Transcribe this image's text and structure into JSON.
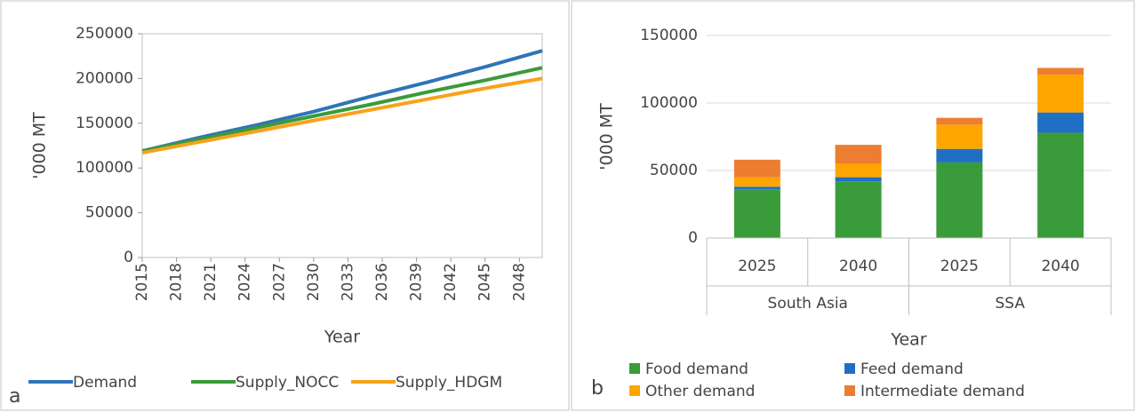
{
  "chart_data": [
    {
      "type": "line",
      "label": "a",
      "ylabel": "'000 MT",
      "xlabel": "Year",
      "x": [
        2015,
        2020,
        2025,
        2030,
        2035,
        2040,
        2045,
        2050
      ],
      "xlim": [
        2015,
        2050
      ],
      "xticks": [
        2015,
        2018,
        2021,
        2024,
        2027,
        2030,
        2033,
        2036,
        2039,
        2042,
        2045,
        2048
      ],
      "ylim": [
        0,
        250000
      ],
      "yticks": [
        0,
        50000,
        100000,
        150000,
        200000,
        250000
      ],
      "grid": false,
      "legend": "bottom",
      "series": [
        {
          "name": "Demand",
          "color": "#2e75b6",
          "values": [
            119000,
            134000,
            148000,
            163000,
            180000,
            196000,
            213000,
            231000
          ]
        },
        {
          "name": "Supply_NOCC",
          "color": "#3a9b3a",
          "values": [
            119000,
            132000,
            145000,
            158000,
            171000,
            185000,
            198000,
            212000
          ]
        },
        {
          "name": "Supply_HDGM",
          "color": "#f9a11b",
          "values": [
            117000,
            129000,
            141000,
            153000,
            165000,
            177000,
            189000,
            200000
          ]
        }
      ]
    },
    {
      "type": "bar",
      "stacked": true,
      "label": "b",
      "ylabel": "'000 MT",
      "xlabel": "Year",
      "categories": [
        "2025",
        "2040",
        "2025",
        "2040"
      ],
      "groups": [
        "South Asia",
        "SSA"
      ],
      "ylim": [
        0,
        150000
      ],
      "yticks": [
        0,
        50000,
        100000,
        150000
      ],
      "grid": true,
      "legend": "bottom",
      "series": [
        {
          "name": "Food demand",
          "color": "#3a9b3a",
          "values": [
            36000,
            42000,
            56000,
            78000
          ]
        },
        {
          "name": "Feed demand",
          "color": "#1f6fc5",
          "values": [
            2000,
            3000,
            10000,
            15000
          ]
        },
        {
          "name": "Other demand",
          "color": "#ffa500",
          "values": [
            7000,
            10000,
            18000,
            28000
          ]
        },
        {
          "name": "Intermediate demand",
          "color": "#ed7d31",
          "values": [
            13000,
            14000,
            5000,
            5000
          ]
        }
      ]
    }
  ]
}
